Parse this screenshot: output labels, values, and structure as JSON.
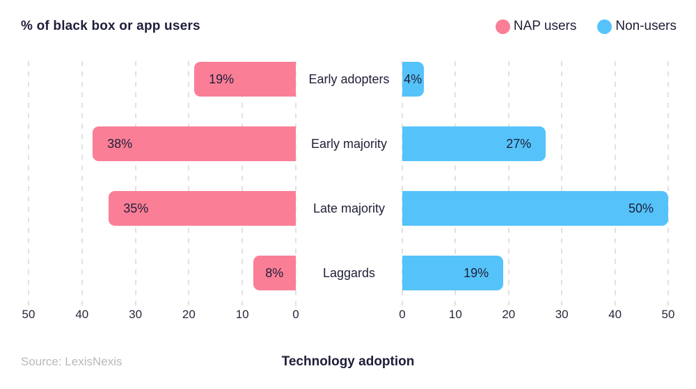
{
  "header": {
    "title": "% of black box or app users",
    "legend": [
      {
        "label": "NAP users",
        "color": "#FA7E96"
      },
      {
        "label": "Non-users",
        "color": "#55C3FA"
      }
    ]
  },
  "footer": {
    "source": "Source: LexisNexis",
    "axis_title": "Technology adoption"
  },
  "chart_data": {
    "type": "bar",
    "orientation": "horizontal-bilateral",
    "title": "Technology adoption",
    "subtitle": "% of black box or app users",
    "categories": [
      "Early adopters",
      "Early majority",
      "Late majority",
      "Laggards"
    ],
    "series": [
      {
        "name": "NAP users",
        "side": "left",
        "color": "#FA7E96",
        "values": [
          19,
          38,
          35,
          8
        ]
      },
      {
        "name": "Non-users",
        "side": "right",
        "color": "#55C3FA",
        "values": [
          4,
          27,
          50,
          19
        ]
      }
    ],
    "value_suffix": "%",
    "axis": {
      "min": 0,
      "max": 50,
      "ticks": [
        0,
        10,
        20,
        30,
        40,
        50
      ]
    },
    "grid": "dashed-vertical",
    "legend_position": "top-right",
    "source": "Source: LexisNexis"
  }
}
